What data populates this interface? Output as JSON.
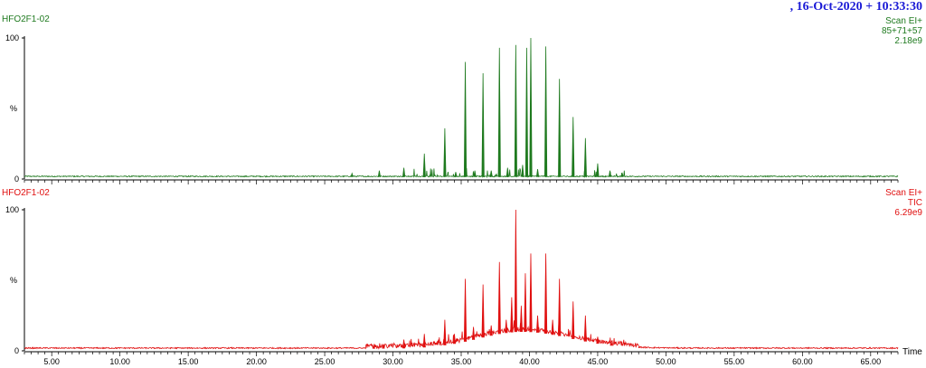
{
  "header": {
    "date_text": ", 16-Oct-2020 + 10:33:30"
  },
  "colors": {
    "top_trace": "#1f7a1f",
    "bottom_trace": "#e01010",
    "date": "#1a1ad6",
    "axis": "#000000"
  },
  "chart_data": [
    {
      "type": "line",
      "sample_label": "HFO2F1-02",
      "info_lines": [
        "Scan EI+",
        "85+71+57",
        "2.18e9"
      ],
      "ylabel": "%",
      "y_ticks": [
        "0",
        "100"
      ],
      "ylim": [
        0,
        100
      ],
      "xlim": [
        3.0,
        67.0
      ],
      "baseline": 1.5,
      "noise": 0.8,
      "hump": null,
      "peaks": [
        {
          "x": 27.0,
          "y": 4
        },
        {
          "x": 29.0,
          "y": 6
        },
        {
          "x": 30.8,
          "y": 8
        },
        {
          "x": 32.3,
          "y": 18
        },
        {
          "x": 33.8,
          "y": 36
        },
        {
          "x": 34.6,
          "y": 5
        },
        {
          "x": 35.3,
          "y": 83
        },
        {
          "x": 36.0,
          "y": 6
        },
        {
          "x": 36.6,
          "y": 75
        },
        {
          "x": 37.2,
          "y": 6
        },
        {
          "x": 37.8,
          "y": 93
        },
        {
          "x": 38.4,
          "y": 8
        },
        {
          "x": 39.0,
          "y": 95
        },
        {
          "x": 39.5,
          "y": 10
        },
        {
          "x": 39.8,
          "y": 93
        },
        {
          "x": 40.1,
          "y": 100
        },
        {
          "x": 40.6,
          "y": 7
        },
        {
          "x": 41.2,
          "y": 94
        },
        {
          "x": 42.2,
          "y": 71
        },
        {
          "x": 43.2,
          "y": 44
        },
        {
          "x": 44.1,
          "y": 29
        },
        {
          "x": 45.0,
          "y": 11
        },
        {
          "x": 45.9,
          "y": 6
        },
        {
          "x": 46.8,
          "y": 4
        }
      ]
    },
    {
      "type": "line",
      "sample_label": "HFO2F1-02",
      "info_lines": [
        "Scan EI+",
        "TIC",
        "6.29e9"
      ],
      "ylabel": "%",
      "y_ticks": [
        "0",
        "100"
      ],
      "ylim": [
        0,
        100
      ],
      "xlim": [
        3.0,
        67.0
      ],
      "x_axis_label": "Time",
      "x_ticks": [
        "5.00",
        "10.00",
        "15.00",
        "20.00",
        "25.00",
        "30.00",
        "35.00",
        "40.00",
        "45.00",
        "50.00",
        "55.00",
        "60.00",
        "65.00"
      ],
      "baseline": 1.5,
      "noise": 0.9,
      "hump": {
        "center": 39.5,
        "height": 12,
        "width_left": 4.5,
        "width_right": 5.0
      },
      "peaks": [
        {
          "x": 28.6,
          "y": 3
        },
        {
          "x": 29.3,
          "y": 4
        },
        {
          "x": 30.8,
          "y": 8
        },
        {
          "x": 32.3,
          "y": 12
        },
        {
          "x": 33.8,
          "y": 22
        },
        {
          "x": 34.5,
          "y": 12
        },
        {
          "x": 35.3,
          "y": 51
        },
        {
          "x": 35.9,
          "y": 17
        },
        {
          "x": 36.6,
          "y": 47
        },
        {
          "x": 37.2,
          "y": 18
        },
        {
          "x": 37.8,
          "y": 63
        },
        {
          "x": 38.3,
          "y": 22
        },
        {
          "x": 38.7,
          "y": 38
        },
        {
          "x": 39.0,
          "y": 100
        },
        {
          "x": 39.4,
          "y": 32
        },
        {
          "x": 39.7,
          "y": 55
        },
        {
          "x": 40.1,
          "y": 69
        },
        {
          "x": 40.6,
          "y": 25
        },
        {
          "x": 41.2,
          "y": 69
        },
        {
          "x": 41.7,
          "y": 22
        },
        {
          "x": 42.2,
          "y": 51
        },
        {
          "x": 43.2,
          "y": 35
        },
        {
          "x": 44.1,
          "y": 25
        },
        {
          "x": 45.0,
          "y": 10
        },
        {
          "x": 46.0,
          "y": 6
        },
        {
          "x": 54.9,
          "y": 2
        }
      ]
    }
  ]
}
